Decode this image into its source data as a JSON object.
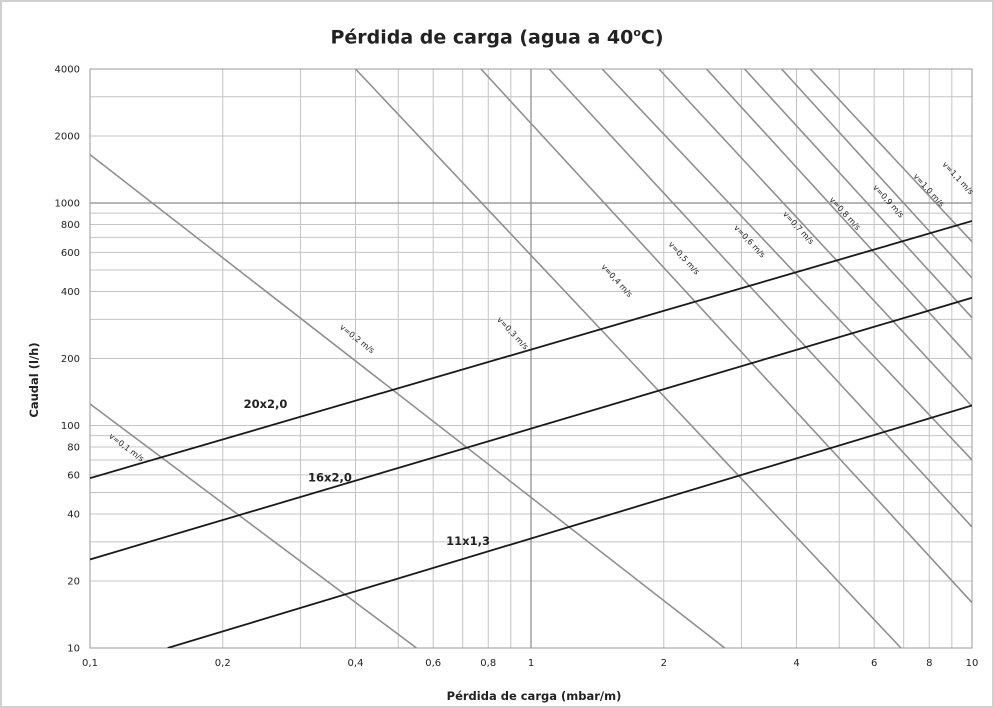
{
  "chart_data": {
    "type": "line",
    "title": "Pérdida de carga (agua a 40",
    "title_sup": "o",
    "title_end": "C)",
    "xlabel": "Pérdida de carga (mbar/m)",
    "ylabel": "Caudal (l/h)",
    "x_scale": "log",
    "y_scale": "log",
    "xlim": [
      0.1,
      10
    ],
    "ylim": [
      10,
      4000
    ],
    "x_ticks": [
      {
        "value": 0.1,
        "label": "0,1"
      },
      {
        "value": 0.2,
        "label": "0,2"
      },
      {
        "value": 0.4,
        "label": "0,4"
      },
      {
        "value": 0.6,
        "label": "0,6"
      },
      {
        "value": 0.8,
        "label": "0,8"
      },
      {
        "value": 1,
        "label": "1"
      },
      {
        "value": 2,
        "label": "2"
      },
      {
        "value": 4,
        "label": "4"
      },
      {
        "value": 6,
        "label": "6"
      },
      {
        "value": 8,
        "label": "8"
      },
      {
        "value": 10,
        "label": "10"
      }
    ],
    "y_ticks": [
      {
        "value": 10,
        "label": "10"
      },
      {
        "value": 20,
        "label": "20"
      },
      {
        "value": 40,
        "label": "40"
      },
      {
        "value": 60,
        "label": "60"
      },
      {
        "value": 80,
        "label": "80"
      },
      {
        "value": 100,
        "label": "100"
      },
      {
        "value": 200,
        "label": "200"
      },
      {
        "value": 400,
        "label": "400"
      },
      {
        "value": 600,
        "label": "600"
      },
      {
        "value": 800,
        "label": "800"
      },
      {
        "value": 1000,
        "label": "1000"
      },
      {
        "value": 2000,
        "label": "2000"
      },
      {
        "value": 4000,
        "label": "4000"
      }
    ],
    "grid_x": [
      0.1,
      0.2,
      0.3,
      0.4,
      0.5,
      0.6,
      0.7,
      0.8,
      0.9,
      1,
      2,
      3,
      4,
      5,
      6,
      7,
      8,
      9,
      10
    ],
    "grid_y": [
      10,
      20,
      30,
      40,
      50,
      60,
      70,
      80,
      90,
      100,
      200,
      300,
      400,
      500,
      600,
      700,
      800,
      900,
      1000,
      2000,
      3000,
      4000
    ],
    "pipe_series": [
      {
        "name": "20x2,0",
        "points": [
          [
            0.1,
            58
          ],
          [
            10,
            830
          ]
        ],
        "label_at": [
          0.25,
          120
        ]
      },
      {
        "name": "16x2,0",
        "points": [
          [
            0.1,
            25
          ],
          [
            10,
            375
          ]
        ],
        "label_at": [
          0.35,
          56
        ]
      },
      {
        "name": "11x1,3",
        "points": [
          [
            0.15,
            10
          ],
          [
            10,
            123
          ]
        ],
        "label_at": [
          0.72,
          29
        ]
      }
    ],
    "velocity_series": [
      {
        "name": "v=0,1 m/s",
        "points": [
          [
            0.1,
            125
          ],
          [
            0.55,
            10
          ]
        ],
        "label_at": [
          0.12,
          78
        ]
      },
      {
        "name": "v=0,2 m/s",
        "points": [
          [
            0.1,
            1650
          ],
          [
            2.75,
            10
          ]
        ],
        "label_at": [
          0.4,
          240
        ]
      },
      {
        "name": "v=0,3 m/s",
        "points": [
          [
            0.4,
            4000
          ],
          [
            6.9,
            10
          ]
        ],
        "label_at": [
          0.9,
          255
        ]
      },
      {
        "name": "v=0,4 m/s",
        "points": [
          [
            0.77,
            4000
          ],
          [
            10,
            16
          ]
        ],
        "label_at": [
          1.55,
          440
        ]
      },
      {
        "name": "v=0,5 m/s",
        "points": [
          [
            1.1,
            4000
          ],
          [
            10,
            35
          ]
        ],
        "label_at": [
          2.2,
          555
        ]
      },
      {
        "name": "v=0,6 m/s",
        "points": [
          [
            1.45,
            4000
          ],
          [
            10,
            70
          ]
        ],
        "label_at": [
          3.1,
          660
        ]
      },
      {
        "name": "v=0,7 m/s",
        "points": [
          [
            1.95,
            4000
          ],
          [
            10,
            122
          ]
        ],
        "label_at": [
          4.0,
          760
        ]
      },
      {
        "name": "v=0,8 m/s",
        "points": [
          [
            2.5,
            4000
          ],
          [
            10,
            198
          ]
        ],
        "label_at": [
          5.1,
          880
        ]
      },
      {
        "name": "v=0,9 m/s",
        "points": [
          [
            3.05,
            4000
          ],
          [
            10,
            305
          ]
        ],
        "label_at": [
          6.4,
          1000
        ]
      },
      {
        "name": "v=1,0 m/s",
        "points": [
          [
            3.7,
            4000
          ],
          [
            10,
            460
          ]
        ],
        "label_at": [
          7.9,
          1120
        ]
      },
      {
        "name": "v=1,1 m/s",
        "points": [
          [
            4.3,
            4000
          ],
          [
            10,
            670
          ]
        ],
        "label_at": [
          9.2,
          1270
        ]
      }
    ],
    "pipe_color": "#1a1a1a",
    "velocity_color": "#909090",
    "grid_color": "#c4c4c4",
    "grid": true
  }
}
